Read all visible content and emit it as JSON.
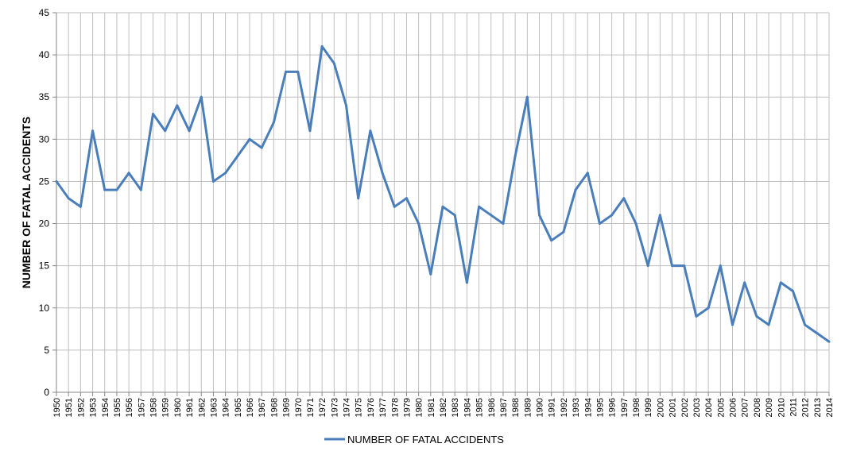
{
  "colors": {
    "series": "#4a7ebb",
    "grid": "#bfbfbf",
    "axis": "#868686"
  },
  "chart_data": {
    "type": "line",
    "title": "",
    "xlabel": "",
    "ylabel": "NUMBER OF FATAL ACCIDENTS",
    "ylim": [
      0,
      45
    ],
    "yticks": [
      0,
      5,
      10,
      15,
      20,
      25,
      30,
      35,
      40,
      45
    ],
    "grid": true,
    "legend": "bottom",
    "categories": [
      "1950",
      "1951",
      "1952",
      "1953",
      "1954",
      "1955",
      "1956",
      "1957",
      "1958",
      "1959",
      "1960",
      "1961",
      "1962",
      "1963",
      "1964",
      "1965",
      "1966",
      "1967",
      "1968",
      "1969",
      "1970",
      "1971",
      "1972",
      "1973",
      "1974",
      "1975",
      "1976",
      "1977",
      "1978",
      "1979",
      "1980",
      "1981",
      "1982",
      "1983",
      "1984",
      "1985",
      "1986",
      "1987",
      "1988",
      "1989",
      "1990",
      "1991",
      "1992",
      "1993",
      "1994",
      "1995",
      "1996",
      "1997",
      "1998",
      "1999",
      "2000",
      "2001",
      "2002",
      "2003",
      "2004",
      "2005",
      "2006",
      "2007",
      "2008",
      "2009",
      "2010",
      "2011",
      "2012",
      "2013",
      "2014"
    ],
    "series": [
      {
        "name": "NUMBER OF FATAL ACCIDENTS",
        "values": [
          25,
          23,
          22,
          31,
          24,
          24,
          26,
          24,
          33,
          31,
          34,
          31,
          35,
          25,
          26,
          28,
          30,
          29,
          32,
          38,
          38,
          31,
          41,
          39,
          34,
          23,
          31,
          26,
          22,
          23,
          20,
          14,
          22,
          21,
          13,
          22,
          21,
          20,
          28,
          35,
          21,
          18,
          19,
          24,
          26,
          20,
          21,
          23,
          20,
          15,
          21,
          15,
          15,
          9,
          10,
          15,
          8,
          13,
          9,
          8,
          13,
          12,
          8,
          7,
          6
        ]
      }
    ]
  }
}
